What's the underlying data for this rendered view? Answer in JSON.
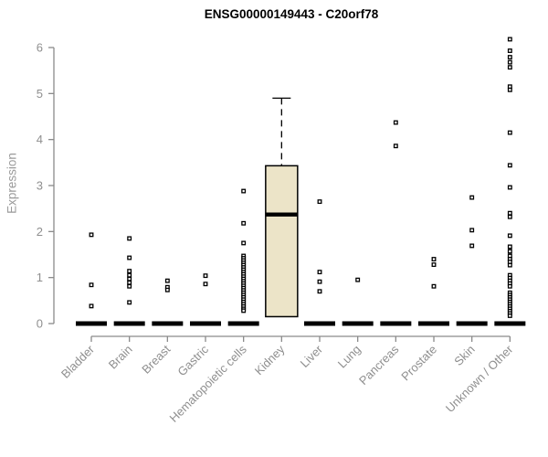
{
  "chart_data": {
    "type": "boxplot",
    "title": "ENSG00000149443 - C20orf78",
    "ylabel": "Expression",
    "xlabel": "",
    "ylim": [
      0,
      6
    ],
    "yticks": [
      0,
      1,
      2,
      3,
      4,
      5,
      6
    ],
    "grid": false,
    "legend": "none",
    "categories": [
      "Bladder",
      "Brain",
      "Breast",
      "Gastric",
      "Hematopoietic cells",
      "Kidney",
      "Liver",
      "Lung",
      "Pancreas",
      "Prostate",
      "Skin",
      "Unknown / Other"
    ],
    "groups": [
      {
        "category": "Bladder",
        "median": 0,
        "points": [
          1.93,
          0.84,
          0.38
        ]
      },
      {
        "category": "Brain",
        "median": 0,
        "points": [
          1.85,
          1.43,
          1.14,
          1.05,
          0.97,
          0.89,
          0.81,
          0.46
        ]
      },
      {
        "category": "Breast",
        "median": 0,
        "points": [
          0.93,
          0.79,
          0.73
        ]
      },
      {
        "category": "Gastric",
        "median": 0,
        "points": [
          1.04,
          0.86
        ]
      },
      {
        "category": "Hematopoietic cells",
        "median": 0,
        "points": [
          2.88,
          2.18,
          1.75,
          1.47,
          1.42,
          1.37,
          1.32,
          1.27,
          1.22,
          1.17,
          1.12,
          1.07,
          1.02,
          0.97,
          0.92,
          0.87,
          0.82,
          0.77,
          0.72,
          0.67,
          0.62,
          0.57,
          0.52,
          0.47,
          0.42,
          0.37,
          0.32,
          0.28
        ]
      },
      {
        "category": "Kidney",
        "box": {
          "q1": 0.15,
          "median": 2.37,
          "q3": 3.43,
          "whisker_high": 4.9
        },
        "points": []
      },
      {
        "category": "Liver",
        "median": 0,
        "points": [
          2.65,
          1.12,
          0.91,
          0.7
        ]
      },
      {
        "category": "Lung",
        "median": 0,
        "points": [
          0.95
        ]
      },
      {
        "category": "Pancreas",
        "median": 0,
        "points": [
          4.37,
          3.86
        ]
      },
      {
        "category": "Prostate",
        "median": 0,
        "points": [
          1.4,
          1.28,
          0.81
        ]
      },
      {
        "category": "Skin",
        "median": 0,
        "points": [
          2.74,
          2.03,
          1.69
        ]
      },
      {
        "category": "Unknown / Other",
        "median": 0,
        "points": [
          6.18,
          5.93,
          5.79,
          5.68,
          5.57,
          5.15,
          5.08,
          4.15,
          3.44,
          2.96,
          2.4,
          2.32,
          1.91,
          1.67,
          1.57,
          1.47,
          1.4,
          1.34,
          1.27,
          1.05,
          0.99,
          0.93,
          0.87,
          0.81,
          0.67,
          0.62,
          0.57,
          0.52,
          0.47,
          0.42,
          0.37,
          0.32,
          0.27,
          0.22,
          0.17
        ]
      }
    ],
    "colors": {
      "box_fill": "#ece4c8",
      "box_border": "#000000",
      "median_line": "#000000",
      "zero_bar": "#000000",
      "point_stroke": "#000000",
      "point_fill": "#ffffff",
      "axis_line": "#8a8a8a",
      "tick_label": "#8f8f8f",
      "axis_title": "#9a9a9a",
      "title": "#000000"
    }
  }
}
